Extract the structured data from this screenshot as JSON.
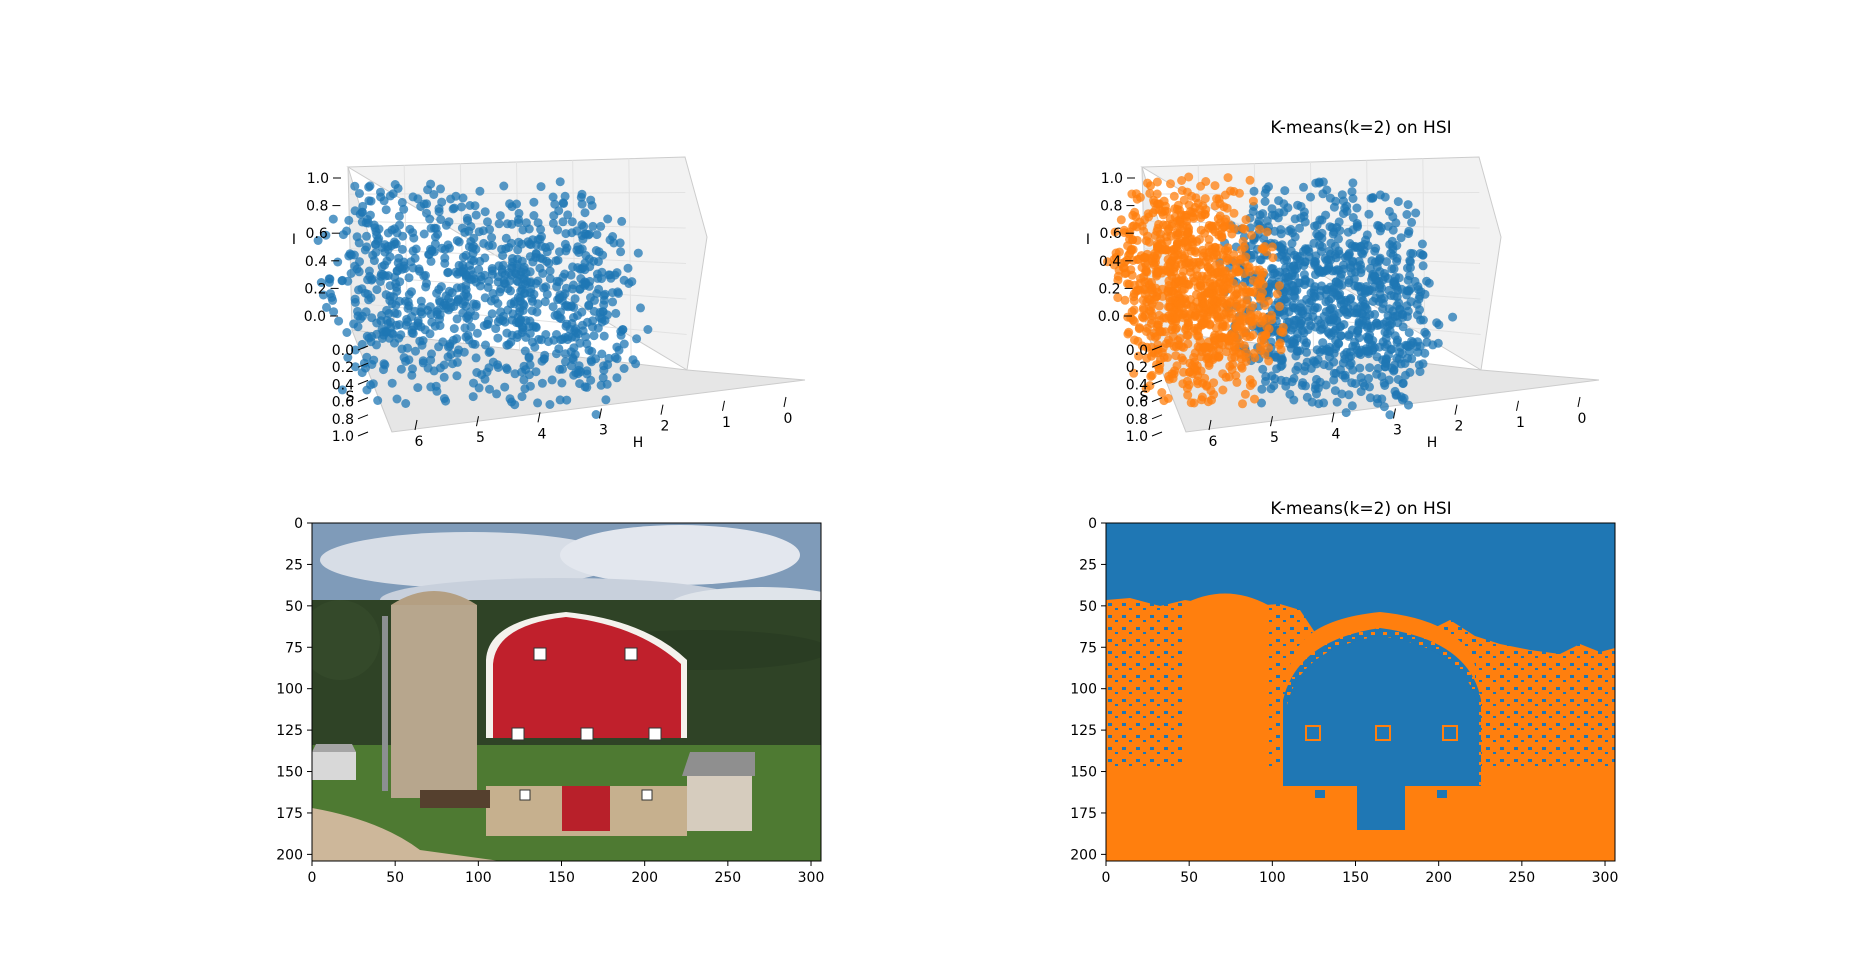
{
  "chart_data": [
    {
      "type": "scatter",
      "projection": "3d",
      "title": "",
      "xlabel": "H",
      "ylabel": "S",
      "zlabel": "I",
      "xlim": [
        0,
        6.28
      ],
      "ylim": [
        0,
        1.0
      ],
      "zlim": [
        0,
        1.0
      ],
      "xticks": [
        "0",
        "1",
        "2",
        "3",
        "4",
        "5",
        "6"
      ],
      "yticks": [
        "0.0",
        "0.2",
        "0.4",
        "0.6",
        "0.8",
        "1.0"
      ],
      "zticks": [
        "0.0",
        "0.2",
        "0.4",
        "0.6",
        "0.8",
        "1.0"
      ],
      "grid": true,
      "series": [
        {
          "color": "#1f77b4",
          "h_range": [
            0,
            6.28
          ],
          "s_range": [
            0,
            1.0
          ],
          "i_range": [
            0,
            1.0
          ]
        }
      ]
    },
    {
      "type": "scatter",
      "projection": "3d",
      "title": "K-means(k=2) on HSI",
      "xlabel": "H",
      "ylabel": "S",
      "zlabel": "I",
      "xlim": [
        0,
        6.28
      ],
      "ylim": [
        0,
        1.0
      ],
      "zlim": [
        0,
        1.0
      ],
      "xticks": [
        "0",
        "1",
        "2",
        "3",
        "4",
        "5",
        "6"
      ],
      "yticks": [
        "0.0",
        "0.2",
        "0.4",
        "0.6",
        "0.8",
        "1.0"
      ],
      "zticks": [
        "0.0",
        "0.2",
        "0.4",
        "0.6",
        "0.8",
        "1.0"
      ],
      "grid": true,
      "series": [
        {
          "color": "#1f77b4",
          "h_range": [
            2.6,
            6.28
          ],
          "s_range": [
            0,
            1.0
          ],
          "i_range": [
            0,
            1.0
          ]
        },
        {
          "color": "#ff7f0e",
          "h_range": [
            0,
            2.6
          ],
          "s_range": [
            0,
            1.0
          ],
          "i_range": [
            0,
            1.0
          ]
        }
      ]
    },
    {
      "type": "image",
      "title": "",
      "xlim": [
        0,
        306
      ],
      "ylim": [
        204,
        0
      ],
      "xticks": [
        "0",
        "50",
        "100",
        "150",
        "200",
        "250",
        "300"
      ],
      "yticks": [
        "0",
        "25",
        "50",
        "75",
        "100",
        "125",
        "150",
        "175",
        "200"
      ]
    },
    {
      "type": "heatmap",
      "title": "K-means(k=2) on HSI",
      "xlim": [
        0,
        306
      ],
      "ylim": [
        204,
        0
      ],
      "xticks": [
        "0",
        "50",
        "100",
        "150",
        "200",
        "250",
        "300"
      ],
      "yticks": [
        "0",
        "25",
        "50",
        "75",
        "100",
        "125",
        "150",
        "175",
        "200"
      ],
      "cluster_colors": [
        "#1f77b4",
        "#ff7f0e"
      ]
    }
  ]
}
